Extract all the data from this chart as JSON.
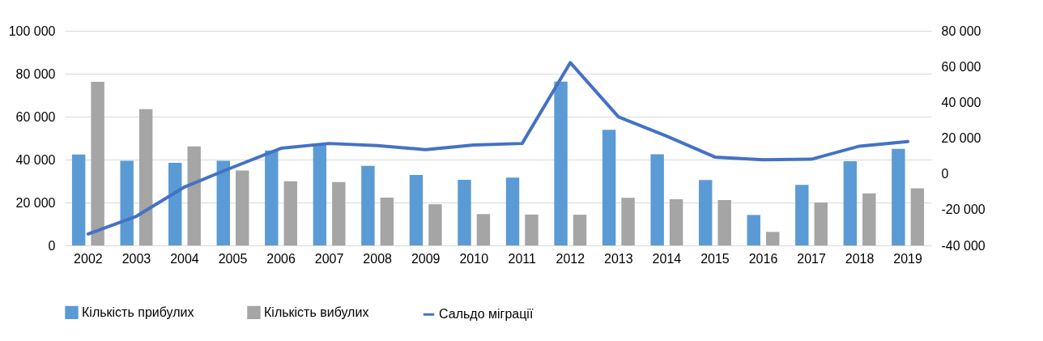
{
  "chart_data": {
    "type": "bar",
    "categories": [
      "2002",
      "2003",
      "2004",
      "2005",
      "2006",
      "2007",
      "2008",
      "2009",
      "2010",
      "2011",
      "2012",
      "2013",
      "2014",
      "2015",
      "2016",
      "2017",
      "2018",
      "2019"
    ],
    "series": [
      {
        "name": "Кількість прибулих",
        "color": "#5b9bd5",
        "values": [
          42400,
          39400,
          38500,
          39400,
          44200,
          47000,
          37100,
          32800,
          30600,
          31600,
          76300,
          53900,
          42500,
          30500,
          14200,
          28200,
          39200,
          45000
        ]
      },
      {
        "name": "Кількість вибулих",
        "color": "#a5a5a5",
        "values": [
          76200,
          63500,
          46100,
          34900,
          29900,
          29500,
          22300,
          19200,
          14600,
          14400,
          14300,
          22200,
          21500,
          21100,
          6300,
          20000,
          24200,
          26600
        ]
      },
      {
        "name": "Сальдо міграції",
        "type": "line",
        "axis": "y2",
        "color": "#4472c4",
        "values": [
          -33600,
          -23700,
          -7300,
          3700,
          14300,
          17000,
          15800,
          13500,
          16100,
          17000,
          62200,
          31800,
          21100,
          9400,
          7900,
          8200,
          15500,
          18100
        ]
      }
    ],
    "ylim": [
      0,
      100000
    ],
    "yticks": [
      {
        "value": 0,
        "label": "0"
      },
      {
        "value": 20000,
        "label": "20 000"
      },
      {
        "value": 40000,
        "label": "40 000"
      },
      {
        "value": 60000,
        "label": "60 000"
      },
      {
        "value": 80000,
        "label": "80 000"
      },
      {
        "value": 100000,
        "label": "100 000"
      }
    ],
    "y2lim": [
      -40000,
      80000
    ],
    "y2ticks": [
      {
        "value": -40000,
        "label": "-40 000"
      },
      {
        "value": -20000,
        "label": "-20 000"
      },
      {
        "value": 0,
        "label": "0"
      },
      {
        "value": 20000,
        "label": "20 000"
      },
      {
        "value": 40000,
        "label": "40 000"
      },
      {
        "value": 60000,
        "label": "60 000"
      },
      {
        "value": 80000,
        "label": "80 000"
      }
    ],
    "grid": "y",
    "legend": "bottom",
    "marker": "none",
    "line_style": "solid"
  }
}
